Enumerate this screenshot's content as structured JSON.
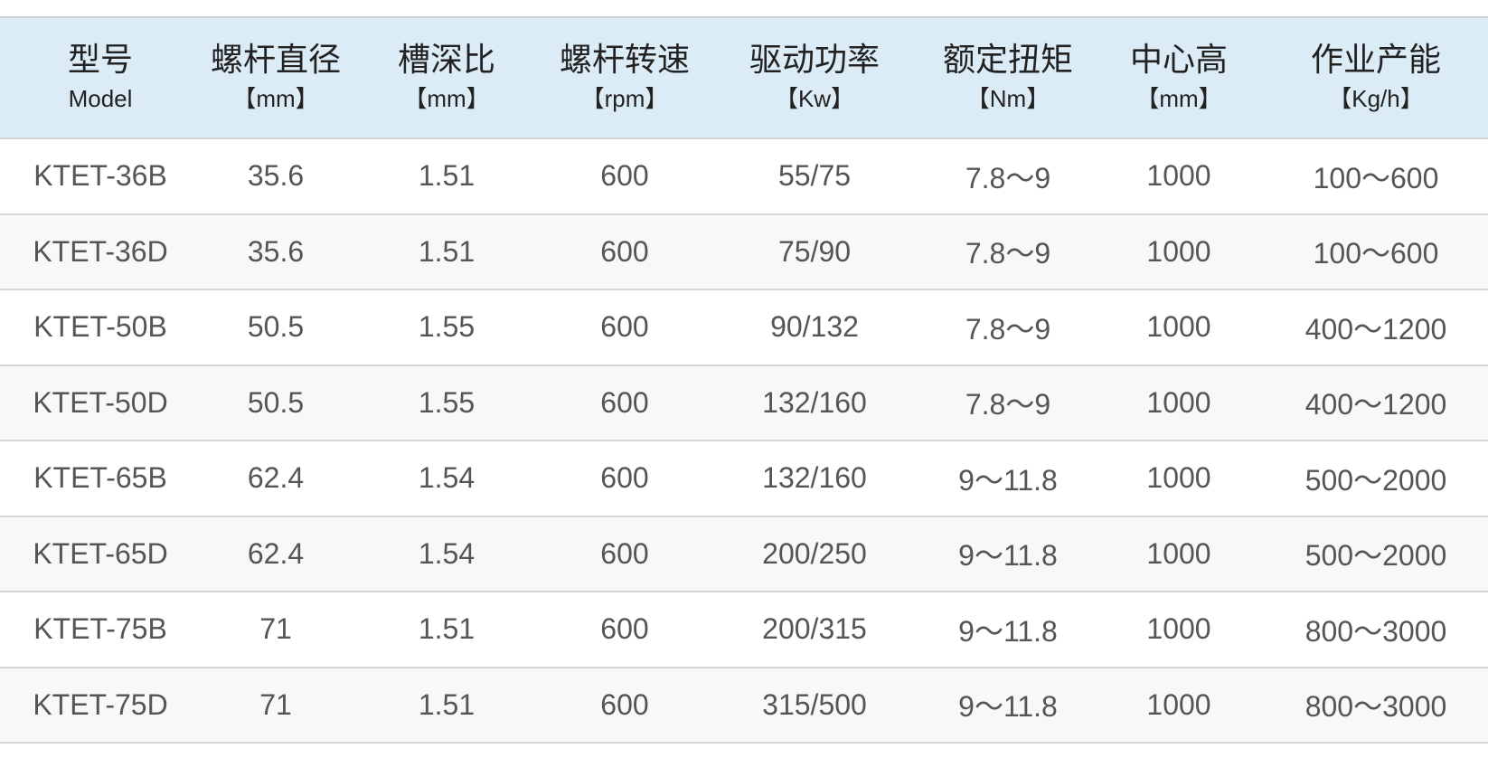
{
  "table": {
    "headers": [
      {
        "zh": "型号",
        "en": "Model"
      },
      {
        "zh": "螺杆直径",
        "en": "【mm】"
      },
      {
        "zh": "槽深比",
        "en": "【mm】"
      },
      {
        "zh": "螺杆转速",
        "en": "【rpm】"
      },
      {
        "zh": "驱动功率",
        "en": "【Kw】"
      },
      {
        "zh": "额定扭矩",
        "en": "【Nm】"
      },
      {
        "zh": "中心高",
        "en": "【mm】"
      },
      {
        "zh": "作业产能",
        "en": "【Kg/h】"
      }
    ],
    "rows": [
      [
        "KTET-36B",
        "35.6",
        "1.51",
        "600",
        "55/75",
        "7.8～9",
        "1000",
        "100～600"
      ],
      [
        "KTET-36D",
        "35.6",
        "1.51",
        "600",
        "75/90",
        "7.8～9",
        "1000",
        "100～600"
      ],
      [
        "KTET-50B",
        "50.5",
        "1.55",
        "600",
        "90/132",
        "7.8～9",
        "1000",
        "400～1200"
      ],
      [
        "KTET-50D",
        "50.5",
        "1.55",
        "600",
        "132/160",
        "7.8～9",
        "1000",
        "400～1200"
      ],
      [
        "KTET-65B",
        "62.4",
        "1.54",
        "600",
        "132/160",
        "9～11.8",
        "1000",
        "500～2000"
      ],
      [
        "KTET-65D",
        "62.4",
        "1.54",
        "600",
        "200/250",
        "9～11.8",
        "1000",
        "500～2000"
      ],
      [
        "KTET-75B",
        "71",
        "1.51",
        "600",
        "200/315",
        "9～11.8",
        "1000",
        "800～3000"
      ],
      [
        "KTET-75D",
        "71",
        "1.51",
        "600",
        "315/500",
        "9～11.8",
        "1000",
        "800～3000"
      ]
    ]
  }
}
